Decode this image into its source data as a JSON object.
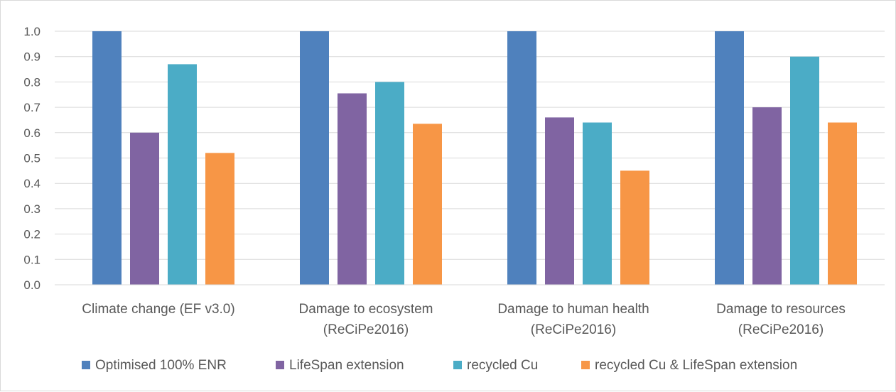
{
  "chart_data": {
    "type": "bar",
    "title": "",
    "xlabel": "",
    "ylabel": "",
    "ylim": [
      0,
      1.0
    ],
    "yticks": [
      "0.0",
      "0.1",
      "0.2",
      "0.3",
      "0.4",
      "0.5",
      "0.6",
      "0.7",
      "0.8",
      "0.9",
      "1.0"
    ],
    "grid": true,
    "legend_position": "bottom",
    "categories": [
      [
        "Climate change (EF v3.0)"
      ],
      [
        "Damage to ecosystem",
        "(ReCiPe2016)"
      ],
      [
        "Damage to human health",
        "(ReCiPe2016)"
      ],
      [
        "Damage to resources",
        "(ReCiPe2016)"
      ]
    ],
    "series": [
      {
        "name": "Optimised 100% ENR",
        "color": "#4f81bd",
        "values": [
          1.0,
          1.0,
          1.0,
          1.0
        ]
      },
      {
        "name": "LifeSpan extension",
        "color": "#8064a2",
        "values": [
          0.6,
          0.755,
          0.66,
          0.7
        ]
      },
      {
        "name": "recycled Cu",
        "color": "#4bacc6",
        "values": [
          0.87,
          0.8,
          0.64,
          0.9
        ]
      },
      {
        "name": "recycled Cu & LifeSpan extension",
        "color": "#f79646",
        "values": [
          0.52,
          0.635,
          0.45,
          0.64
        ]
      }
    ]
  }
}
